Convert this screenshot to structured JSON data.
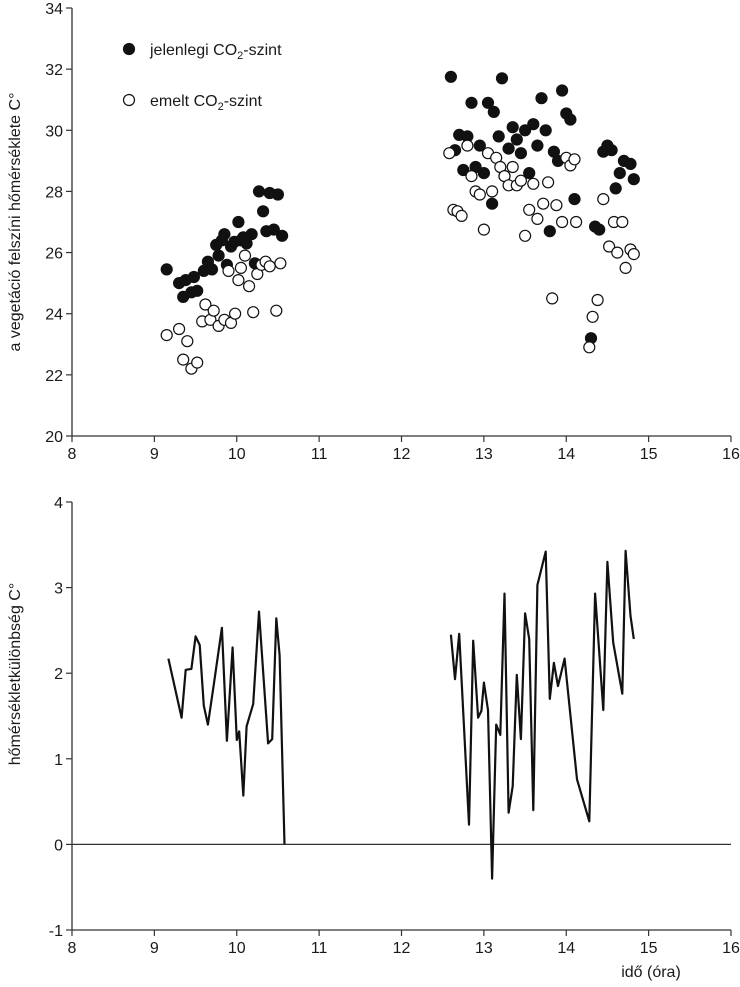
{
  "chart_data": [
    {
      "type": "scatter",
      "title": "",
      "xlabel": "",
      "ylabel": "a vegetáció felszíni hőmérséklete C°",
      "xlim": [
        8,
        16
      ],
      "ylim": [
        20,
        34
      ],
      "xticks": [
        8,
        9,
        10,
        11,
        12,
        13,
        14,
        15,
        16
      ],
      "yticks": [
        20,
        22,
        24,
        26,
        28,
        30,
        32,
        34
      ],
      "legend_position": "top-left",
      "series": [
        {
          "name_main": "jelenlegi CO",
          "name_sub": "2",
          "name_rest": "-szint",
          "marker": "filled-circle",
          "color": "#111111",
          "points": [
            [
              9.15,
              25.45
            ],
            [
              9.3,
              25.0
            ],
            [
              9.35,
              24.55
            ],
            [
              9.38,
              25.1
            ],
            [
              9.45,
              24.7
            ],
            [
              9.48,
              25.2
            ],
            [
              9.52,
              24.75
            ],
            [
              9.6,
              25.4
            ],
            [
              9.65,
              25.7
            ],
            [
              9.7,
              25.45
            ],
            [
              9.75,
              26.25
            ],
            [
              9.78,
              25.9
            ],
            [
              9.82,
              26.4
            ],
            [
              9.85,
              26.6
            ],
            [
              9.88,
              25.6
            ],
            [
              9.93,
              26.2
            ],
            [
              9.97,
              26.35
            ],
            [
              10.02,
              27.0
            ],
            [
              10.05,
              26.4
            ],
            [
              10.08,
              26.5
            ],
            [
              10.12,
              26.3
            ],
            [
              10.18,
              26.6
            ],
            [
              10.22,
              25.65
            ],
            [
              10.27,
              28.0
            ],
            [
              10.32,
              27.35
            ],
            [
              10.36,
              26.7
            ],
            [
              10.4,
              27.95
            ],
            [
              10.45,
              26.75
            ],
            [
              10.5,
              27.9
            ],
            [
              10.55,
              26.55
            ],
            [
              12.6,
              31.75
            ],
            [
              12.65,
              29.35
            ],
            [
              12.7,
              29.85
            ],
            [
              12.75,
              28.7
            ],
            [
              12.8,
              29.8
            ],
            [
              12.85,
              30.9
            ],
            [
              12.9,
              28.8
            ],
            [
              12.95,
              29.5
            ],
            [
              13.0,
              28.6
            ],
            [
              13.05,
              30.9
            ],
            [
              13.1,
              27.6
            ],
            [
              13.12,
              30.6
            ],
            [
              13.18,
              29.8
            ],
            [
              13.22,
              31.7
            ],
            [
              13.25,
              28.5
            ],
            [
              13.3,
              29.4
            ],
            [
              13.35,
              30.1
            ],
            [
              13.4,
              29.7
            ],
            [
              13.45,
              29.25
            ],
            [
              13.5,
              30.0
            ],
            [
              13.55,
              28.6
            ],
            [
              13.6,
              30.2
            ],
            [
              13.65,
              29.5
            ],
            [
              13.7,
              31.05
            ],
            [
              13.75,
              30.0
            ],
            [
              13.8,
              26.7
            ],
            [
              13.85,
              29.3
            ],
            [
              13.9,
              29.0
            ],
            [
              13.95,
              31.3
            ],
            [
              14.0,
              30.55
            ],
            [
              14.05,
              30.35
            ],
            [
              14.1,
              27.75
            ],
            [
              14.3,
              23.2
            ],
            [
              14.35,
              26.85
            ],
            [
              14.4,
              26.75
            ],
            [
              14.45,
              29.3
            ],
            [
              14.5,
              29.5
            ],
            [
              14.55,
              29.35
            ],
            [
              14.6,
              28.1
            ],
            [
              14.65,
              28.6
            ],
            [
              14.7,
              29.0
            ],
            [
              14.78,
              28.9
            ],
            [
              14.82,
              28.4
            ]
          ]
        },
        {
          "name_main": "emelt CO",
          "name_sub": "2",
          "name_rest": "-szint",
          "marker": "open-circle",
          "color": "#111111",
          "points": [
            [
              9.15,
              23.3
            ],
            [
              9.3,
              23.5
            ],
            [
              9.35,
              22.5
            ],
            [
              9.4,
              23.1
            ],
            [
              9.45,
              22.2
            ],
            [
              9.52,
              22.4
            ],
            [
              9.58,
              23.75
            ],
            [
              9.62,
              24.3
            ],
            [
              9.68,
              23.8
            ],
            [
              9.72,
              24.1
            ],
            [
              9.78,
              23.6
            ],
            [
              9.85,
              23.8
            ],
            [
              9.9,
              25.4
            ],
            [
              9.93,
              23.7
            ],
            [
              9.98,
              24.0
            ],
            [
              10.02,
              25.1
            ],
            [
              10.05,
              25.5
            ],
            [
              10.1,
              25.9
            ],
            [
              10.15,
              24.9
            ],
            [
              10.2,
              24.05
            ],
            [
              10.25,
              25.3
            ],
            [
              10.3,
              25.6
            ],
            [
              10.35,
              25.7
            ],
            [
              10.4,
              25.55
            ],
            [
              10.48,
              24.1
            ],
            [
              10.53,
              25.65
            ],
            [
              12.58,
              29.25
            ],
            [
              12.63,
              27.4
            ],
            [
              12.68,
              27.35
            ],
            [
              12.73,
              27.2
            ],
            [
              12.8,
              29.5
            ],
            [
              12.85,
              28.5
            ],
            [
              12.9,
              28.0
            ],
            [
              12.95,
              27.9
            ],
            [
              13.0,
              26.75
            ],
            [
              13.05,
              29.25
            ],
            [
              13.1,
              28.0
            ],
            [
              13.15,
              29.1
            ],
            [
              13.2,
              28.8
            ],
            [
              13.25,
              28.5
            ],
            [
              13.3,
              28.2
            ],
            [
              13.35,
              28.8
            ],
            [
              13.4,
              28.2
            ],
            [
              13.45,
              28.35
            ],
            [
              13.5,
              26.55
            ],
            [
              13.55,
              27.4
            ],
            [
              13.6,
              28.25
            ],
            [
              13.65,
              27.1
            ],
            [
              13.72,
              27.6
            ],
            [
              13.78,
              28.3
            ],
            [
              13.83,
              24.5
            ],
            [
              13.88,
              27.55
            ],
            [
              13.95,
              27.0
            ],
            [
              14.0,
              29.1
            ],
            [
              14.05,
              28.85
            ],
            [
              14.1,
              29.05
            ],
            [
              14.12,
              27.0
            ],
            [
              14.28,
              22.9
            ],
            [
              14.32,
              23.9
            ],
            [
              14.38,
              24.45
            ],
            [
              14.45,
              27.75
            ],
            [
              14.52,
              26.2
            ],
            [
              14.58,
              27.0
            ],
            [
              14.62,
              26.0
            ],
            [
              14.68,
              27.0
            ],
            [
              14.72,
              25.5
            ],
            [
              14.78,
              26.1
            ],
            [
              14.82,
              25.95
            ]
          ]
        }
      ]
    },
    {
      "type": "line",
      "title": "",
      "xlabel": "idő (óra)",
      "ylabel": "hőmérsékletkülönbség C°",
      "xlim": [
        8,
        16
      ],
      "ylim": [
        -1,
        4
      ],
      "xticks": [
        8,
        9,
        10,
        11,
        12,
        13,
        14,
        15,
        16
      ],
      "yticks": [
        -1,
        0,
        1,
        2,
        3,
        4
      ],
      "reference_line_y": 0,
      "series": [
        {
          "color": "#111111",
          "segments": [
            [
              [
                9.17,
                2.17
              ],
              [
                9.33,
                1.48
              ],
              [
                9.38,
                2.04
              ],
              [
                9.45,
                2.05
              ],
              [
                9.5,
                2.43
              ],
              [
                9.55,
                2.33
              ],
              [
                9.6,
                1.62
              ],
              [
                9.65,
                1.4
              ],
              [
                9.72,
                1.86
              ],
              [
                9.82,
                2.53
              ],
              [
                9.88,
                1.21
              ],
              [
                9.95,
                2.3
              ],
              [
                10.0,
                1.22
              ],
              [
                10.03,
                1.32
              ],
              [
                10.08,
                0.57
              ],
              [
                10.12,
                1.38
              ],
              [
                10.2,
                1.64
              ],
              [
                10.27,
                2.72
              ],
              [
                10.38,
                1.18
              ],
              [
                10.43,
                1.23
              ],
              [
                10.48,
                2.64
              ],
              [
                10.52,
                2.21
              ],
              [
                10.58,
                0.0
              ]
            ],
            [
              [
                12.6,
                2.45
              ],
              [
                12.65,
                1.93
              ],
              [
                12.7,
                2.46
              ],
              [
                12.75,
                1.53
              ],
              [
                12.82,
                0.23
              ],
              [
                12.87,
                2.38
              ],
              [
                12.93,
                1.48
              ],
              [
                12.97,
                1.56
              ],
              [
                13.0,
                1.89
              ],
              [
                13.05,
                1.57
              ],
              [
                13.1,
                -0.4
              ],
              [
                13.15,
                1.4
              ],
              [
                13.2,
                1.28
              ],
              [
                13.25,
                2.93
              ],
              [
                13.3,
                0.37
              ],
              [
                13.35,
                0.68
              ],
              [
                13.4,
                1.98
              ],
              [
                13.45,
                1.23
              ],
              [
                13.5,
                2.7
              ],
              [
                13.55,
                2.4
              ],
              [
                13.6,
                0.4
              ],
              [
                13.65,
                3.03
              ],
              [
                13.75,
                3.42
              ],
              [
                13.8,
                1.7
              ],
              [
                13.85,
                2.12
              ],
              [
                13.9,
                1.85
              ],
              [
                13.98,
                2.17
              ],
              [
                14.13,
                0.76
              ],
              [
                14.28,
                0.27
              ],
              [
                14.35,
                2.93
              ],
              [
                14.45,
                1.57
              ],
              [
                14.5,
                3.3
              ],
              [
                14.57,
                2.36
              ],
              [
                14.68,
                1.76
              ],
              [
                14.72,
                3.43
              ],
              [
                14.78,
                2.67
              ],
              [
                14.82,
                2.4
              ]
            ]
          ]
        }
      ]
    }
  ]
}
